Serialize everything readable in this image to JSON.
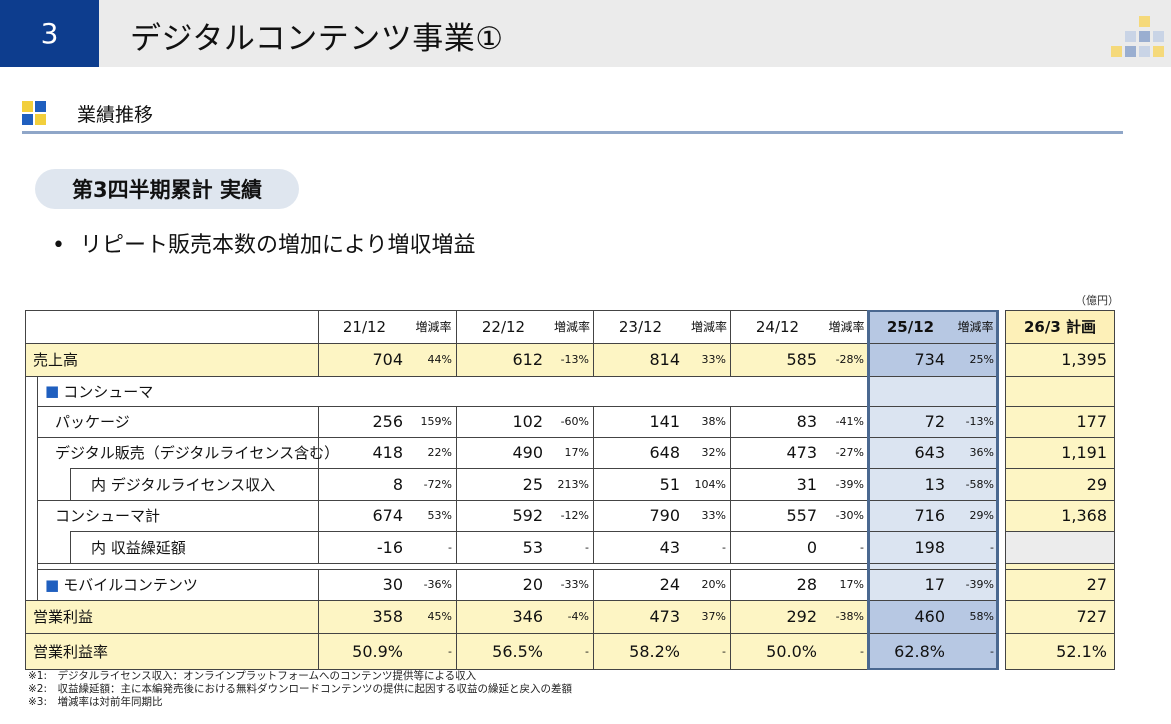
{
  "header": {
    "page_number": "3",
    "title": "デジタルコンテンツ事業①"
  },
  "section": {
    "title": "業績推移"
  },
  "pill": "第3四半期累計 実績",
  "bullet": "リピート販売本数の増加により増収増益",
  "unit": "（億円）",
  "table": {
    "columns": [
      "21/12",
      "増減率",
      "22/12",
      "増減率",
      "23/12",
      "増減率",
      "24/12",
      "増減率",
      "25/12",
      "増減率",
      "26/3 計画"
    ],
    "rows": [
      {
        "label": "売上高",
        "cells": [
          "704",
          "44%",
          "612",
          "-13%",
          "814",
          "33%",
          "585",
          "-28%",
          "734",
          "25%",
          "1,395"
        ]
      },
      {
        "label": "■ コンシューマ",
        "cells": []
      },
      {
        "label": "パッケージ",
        "cells": [
          "256",
          "159%",
          "102",
          "-60%",
          "141",
          "38%",
          "83",
          "-41%",
          "72",
          "-13%",
          "177"
        ]
      },
      {
        "label": "デジタル販売（デジタルライセンス含む）",
        "cells": [
          "418",
          "22%",
          "490",
          "17%",
          "648",
          "32%",
          "473",
          "-27%",
          "643",
          "36%",
          "1,191"
        ]
      },
      {
        "label": "内 デジタルライセンス収入",
        "cells": [
          "8",
          "-72%",
          "25",
          "213%",
          "51",
          "104%",
          "31",
          "-39%",
          "13",
          "-58%",
          "29"
        ]
      },
      {
        "label": "コンシューマ計",
        "cells": [
          "674",
          "53%",
          "592",
          "-12%",
          "790",
          "33%",
          "557",
          "-30%",
          "716",
          "29%",
          "1,368"
        ]
      },
      {
        "label": "内 収益繰延額",
        "cells": [
          "-16",
          "-",
          "53",
          "-",
          "43",
          "-",
          "0",
          "-",
          "198",
          "-",
          ""
        ]
      },
      {
        "label": "■ モバイルコンテンツ",
        "cells": [
          "30",
          "-36%",
          "20",
          "-33%",
          "24",
          "20%",
          "28",
          "17%",
          "17",
          "-39%",
          "27"
        ]
      },
      {
        "label": "営業利益",
        "cells": [
          "358",
          "45%",
          "346",
          "-4%",
          "473",
          "37%",
          "292",
          "-38%",
          "460",
          "58%",
          "727"
        ]
      },
      {
        "label": "営業利益率",
        "cells": [
          "50.9%",
          "-",
          "56.5%",
          "-",
          "58.2%",
          "-",
          "50.0%",
          "-",
          "62.8%",
          "-",
          "52.1%"
        ]
      }
    ]
  },
  "footnotes": [
    "※1:　デジタルライセンス収入：オンラインプラットフォームへのコンテンツ提供等による収入",
    "※2:　収益繰延額：主に本編発売後における無料ダウンロードコンテンツの提供に起因する収益の繰延と戻入の差額",
    "※3:　増減率は対前年同期比"
  ],
  "colors": {
    "brand_blue": "#0d3d8e",
    "highlight_yellow": "#fdf5c4",
    "current_period": "#dbe4f1",
    "current_period_strong": "#b7c8e3",
    "plan_column": "#fdf0b8",
    "accent_square": "#1f5fbf"
  }
}
